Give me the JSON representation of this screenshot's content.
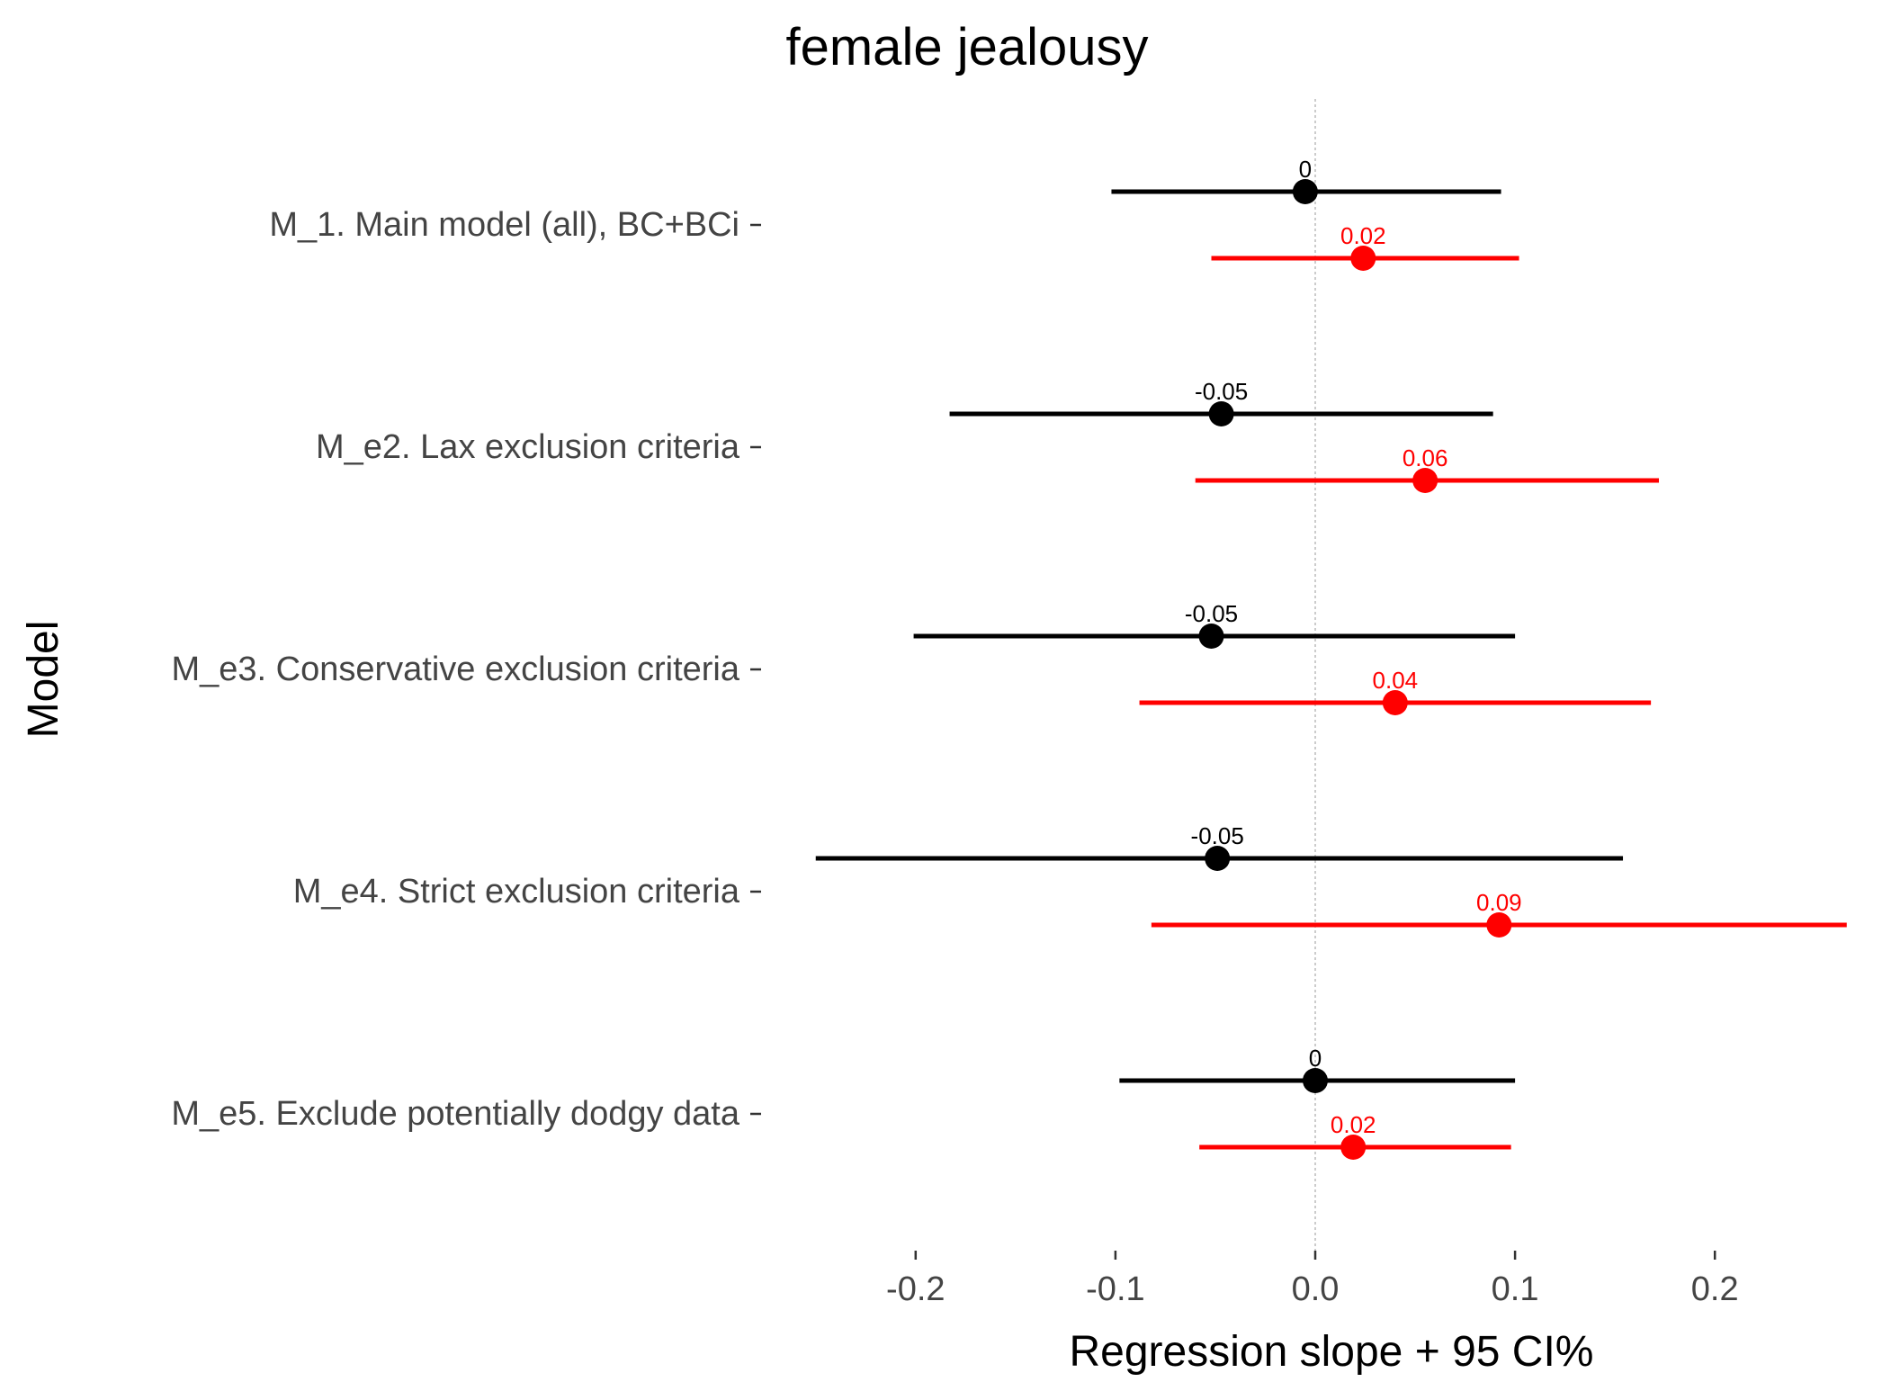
{
  "chart_data": {
    "type": "scatter",
    "title": "female jealousy",
    "xlabel": "Regression slope + 95 CI%",
    "ylabel": "Model",
    "xlim": [
      -0.25,
      0.27
    ],
    "xticks": [
      -0.2,
      -0.1,
      0.0,
      0.1,
      0.2
    ],
    "xtick_labels": [
      "-0.2",
      "-0.1",
      "0.0",
      "0.1",
      "0.2"
    ],
    "reference_line_x": 0,
    "grid": false,
    "legend": "none",
    "colors": {
      "black": "#000000",
      "red": "#ff0000"
    },
    "categories": [
      "M_1. Main model (all), BC+BCi",
      "M_e2. Lax exclusion criteria",
      "M_e3. Conservative exclusion criteria",
      "M_e4. Strict exclusion criteria",
      "M_e5. Exclude potentially dodgy data"
    ],
    "series": [
      {
        "color": "#000000",
        "points": [
          {
            "estimate": -0.005,
            "lower": -0.102,
            "upper": 0.093,
            "label": "0"
          },
          {
            "estimate": -0.047,
            "lower": -0.183,
            "upper": 0.089,
            "label": "-0.05"
          },
          {
            "estimate": -0.052,
            "lower": -0.201,
            "upper": 0.1,
            "label": "-0.05"
          },
          {
            "estimate": -0.049,
            "lower": -0.25,
            "upper": 0.154,
            "label": "-0.05"
          },
          {
            "estimate": 0.0,
            "lower": -0.098,
            "upper": 0.1,
            "label": "0"
          }
        ]
      },
      {
        "color": "#ff0000",
        "points": [
          {
            "estimate": 0.024,
            "lower": -0.052,
            "upper": 0.102,
            "label": "0.02"
          },
          {
            "estimate": 0.055,
            "lower": -0.06,
            "upper": 0.172,
            "label": "0.06"
          },
          {
            "estimate": 0.04,
            "lower": -0.088,
            "upper": 0.168,
            "label": "0.04"
          },
          {
            "estimate": 0.092,
            "lower": -0.082,
            "upper": 0.266,
            "label": "0.09"
          },
          {
            "estimate": 0.019,
            "lower": -0.058,
            "upper": 0.098,
            "label": "0.02"
          }
        ]
      }
    ]
  }
}
